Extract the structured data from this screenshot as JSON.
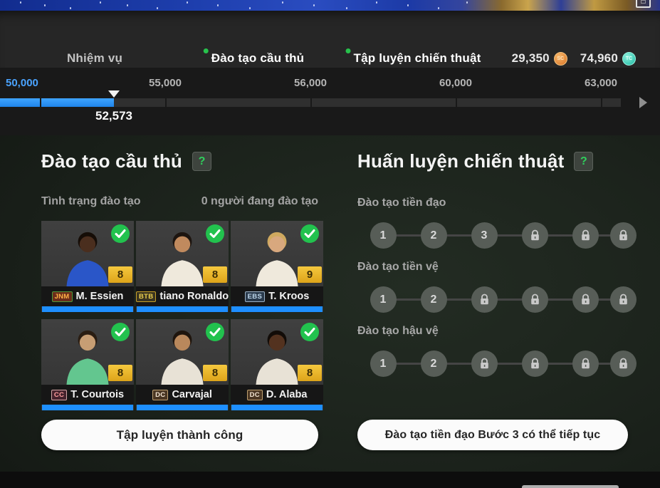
{
  "header": {
    "tabs": [
      {
        "label": "Nhiệm vụ",
        "dot": false,
        "dim": true
      },
      {
        "label": "Đào tạo cầu thủ",
        "dot": true,
        "dim": false
      },
      {
        "label": "Tập luyện chiến thuật",
        "dot": true,
        "dim": false
      }
    ],
    "currencies": [
      {
        "amount": "29,350",
        "coin": "SC"
      },
      {
        "amount": "74,960",
        "coin": "TC"
      }
    ]
  },
  "progress": {
    "milestones": [
      "50,000",
      "55,000",
      "56,000",
      "60,000",
      "63,000"
    ],
    "current_value": "52,573"
  },
  "left_panel": {
    "title": "Đào tạo cầu thủ",
    "help_icon": "?",
    "status_label": "Tình trạng đào tạo",
    "count_label": "0 người đang đào tạo",
    "players": [
      {
        "badge": "JNM",
        "badge_style": "jnm",
        "name": "M. Essien",
        "rating": "8",
        "jersey": "#2a56c8",
        "skin": "#4a2e1e",
        "hair": "#150d07"
      },
      {
        "badge": "BTB",
        "badge_style": "btb",
        "name": "tiano Ronaldo",
        "rating": "8",
        "jersey": "#efe9dc",
        "skin": "#c08a5e",
        "hair": "#1d1510"
      },
      {
        "badge": "EBS",
        "badge_style": "ebs",
        "name": "T. Kroos",
        "rating": "9",
        "jersey": "#efe9dc",
        "skin": "#d8a87e",
        "hair": "#cfa95f"
      },
      {
        "badge": "CC",
        "badge_style": "cc",
        "name": "T. Courtois",
        "rating": "8",
        "jersey": "#63c68f",
        "skin": "#c79e74",
        "hair": "#2a1d12"
      },
      {
        "badge": "DC",
        "badge_style": "dc",
        "name": "Carvajal",
        "rating": "8",
        "jersey": "#e8e2d6",
        "skin": "#b9885c",
        "hair": "#1f150d"
      },
      {
        "badge": "DC",
        "badge_style": "dc",
        "name": "D. Alaba",
        "rating": "8",
        "jersey": "#e8e2d6",
        "skin": "#53321f",
        "hair": "#120c08"
      }
    ],
    "button_label": "Tập luyện thành công"
  },
  "right_panel": {
    "title": "Huấn luyện chiến thuật",
    "help_icon": "?",
    "groups": [
      {
        "label": "Đào tạo tiền đạo",
        "steps": [
          "1",
          "2",
          "3",
          "lock",
          "lock",
          "lock"
        ]
      },
      {
        "label": "Đào tạo tiền vệ",
        "steps": [
          "1",
          "2",
          "lock",
          "lock",
          "lock",
          "lock"
        ]
      },
      {
        "label": "Đào tạo hậu vệ",
        "steps": [
          "1",
          "2",
          "lock",
          "lock",
          "lock",
          "lock"
        ]
      }
    ],
    "button_label": "Đào tạo tiền đạo Bước 3 có thể tiếp tục"
  }
}
